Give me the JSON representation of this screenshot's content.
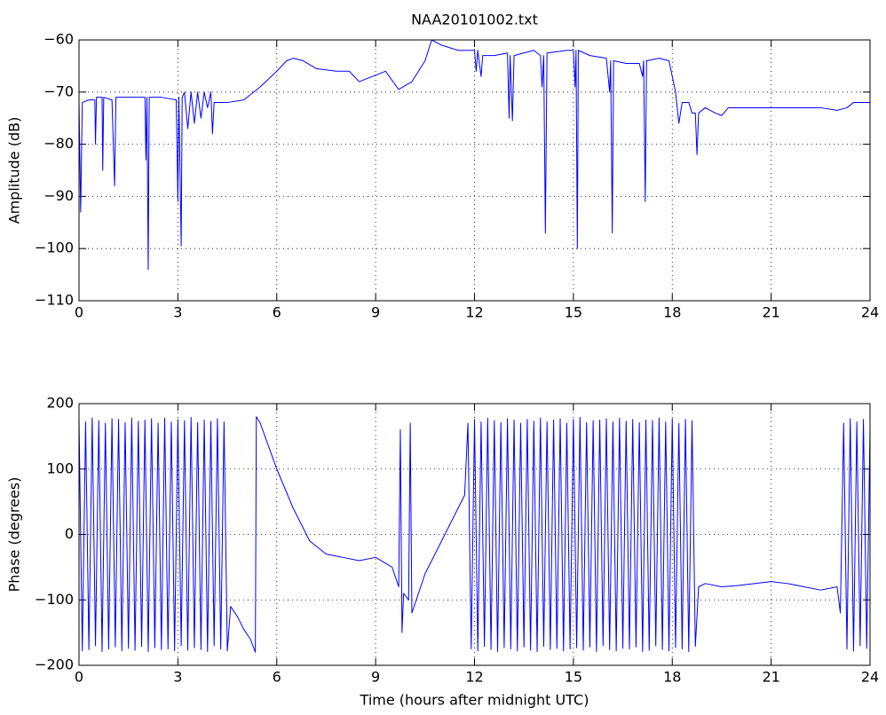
{
  "chart_data": [
    {
      "type": "line",
      "title": "NAA20101002.txt",
      "ylabel": "Amplitude (dB)",
      "color": "#0000ff",
      "grid": true,
      "xlim": [
        0,
        24
      ],
      "xticks": [
        0,
        3,
        6,
        9,
        12,
        15,
        18,
        21,
        24
      ],
      "ylim": [
        -110,
        -60
      ],
      "yticks": [
        {
          "value": -110,
          "label": "−110"
        },
        {
          "value": -100,
          "label": "−100"
        },
        {
          "value": -90,
          "label": "−90"
        },
        {
          "value": -80,
          "label": "−80"
        },
        {
          "value": -70,
          "label": "−70"
        },
        {
          "value": -60,
          "label": "−60"
        }
      ],
      "x": [
        0,
        0.05,
        0.1,
        0.3,
        0.48,
        0.5,
        0.53,
        0.7,
        0.72,
        0.75,
        1.0,
        1.08,
        1.12,
        1.5,
        2.0,
        2.03,
        2.06,
        2.1,
        2.13,
        2.5,
        2.95,
        3.0,
        3.03,
        3.1,
        3.13,
        3.2,
        3.3,
        3.4,
        3.5,
        3.6,
        3.7,
        3.8,
        3.9,
        4.0,
        4.05,
        4.1,
        4.5,
        5.0,
        5.5,
        6.0,
        6.3,
        6.5,
        6.8,
        7.2,
        7.8,
        8.2,
        8.5,
        8.9,
        9.3,
        9.7,
        10.1,
        10.5,
        10.7,
        11.0,
        11.5,
        12.0,
        12.05,
        12.1,
        12.2,
        12.25,
        12.6,
        13.0,
        13.05,
        13.08,
        13.15,
        13.2,
        13.8,
        14.0,
        14.05,
        14.1,
        14.15,
        14.2,
        14.8,
        15.0,
        15.05,
        15.08,
        15.12,
        15.15,
        15.5,
        16.0,
        16.1,
        16.13,
        16.18,
        16.22,
        16.6,
        17.0,
        17.1,
        17.13,
        17.18,
        17.22,
        17.6,
        17.9,
        18.0,
        18.1,
        18.2,
        18.3,
        18.5,
        18.6,
        18.7,
        18.75,
        18.8,
        19.0,
        19.3,
        19.5,
        19.7,
        20,
        21,
        22,
        22.5,
        23,
        23.3,
        23.5,
        24
      ],
      "values": [
        -72,
        -93,
        -72,
        -71.5,
        -71.5,
        -80,
        -71,
        -71,
        -85,
        -71,
        -71.5,
        -88,
        -71,
        -71,
        -71,
        -83,
        -71,
        -104,
        -71,
        -71,
        -71.5,
        -91,
        -71,
        -99.5,
        -71,
        -70,
        -77,
        -70,
        -76,
        -70,
        -75,
        -70,
        -73,
        -70,
        -78,
        -72,
        -72,
        -71.5,
        -69,
        -66,
        -64,
        -63.5,
        -64,
        -65.5,
        -66,
        -66,
        -68,
        -67,
        -66,
        -69.5,
        -68,
        -64,
        -60,
        -61,
        -62,
        -62,
        -66,
        -62,
        -67,
        -63,
        -63,
        -62.5,
        -75,
        -63,
        -75.5,
        -63,
        -62,
        -63,
        -69,
        -63,
        -97,
        -62.5,
        -62,
        -62,
        -69,
        -62,
        -100,
        -62,
        -63,
        -63.5,
        -70,
        -64,
        -97,
        -64,
        -64.5,
        -64.5,
        -67,
        -64,
        -91,
        -64,
        -63.5,
        -64,
        -67,
        -70,
        -76,
        -72,
        -72,
        -74,
        -74,
        -82,
        -74,
        -73,
        -74,
        -74.5,
        -73,
        -73,
        -73,
        -73,
        -73,
        -73.5,
        -73,
        -72,
        -72
      ]
    },
    {
      "type": "line",
      "xlabel": "Time (hours after midnight UTC)",
      "ylabel": "Phase (degrees)",
      "color": "#0000ff",
      "grid": true,
      "xlim": [
        0,
        24
      ],
      "xticks": [
        0,
        3,
        6,
        9,
        12,
        15,
        18,
        21,
        24
      ],
      "ylim": [
        -200,
        200
      ],
      "yticks": [
        {
          "value": -200,
          "label": "−200"
        },
        {
          "value": -100,
          "label": "−100"
        },
        0,
        100,
        200
      ],
      "x": [
        0,
        0.1,
        0.2,
        0.3,
        0.4,
        0.5,
        0.6,
        0.7,
        0.8,
        0.9,
        1.0,
        1.1,
        1.2,
        1.3,
        1.4,
        1.5,
        1.6,
        1.7,
        1.8,
        1.9,
        2.0,
        2.1,
        2.2,
        2.3,
        2.4,
        2.5,
        2.6,
        2.7,
        2.8,
        2.9,
        3.0,
        3.1,
        3.2,
        3.3,
        3.4,
        3.5,
        3.6,
        3.7,
        3.8,
        3.9,
        4.0,
        4.1,
        4.2,
        4.3,
        4.4,
        4.5,
        4.6,
        4.8,
        5.0,
        5.2,
        5.35,
        5.38,
        5.5,
        6.0,
        6.5,
        7.0,
        7.5,
        8.0,
        8.5,
        9.0,
        9.5,
        9.7,
        9.75,
        9.8,
        9.85,
        10.0,
        10.05,
        10.1,
        10.5,
        11.0,
        11.5,
        11.7,
        11.8,
        11.9,
        12.0,
        12.1,
        12.2,
        12.3,
        12.4,
        12.5,
        12.6,
        12.7,
        12.8,
        12.9,
        13.0,
        13.1,
        13.2,
        13.3,
        13.4,
        13.5,
        13.6,
        13.7,
        13.8,
        13.9,
        14.0,
        14.1,
        14.2,
        14.3,
        14.4,
        14.5,
        14.6,
        14.7,
        14.8,
        14.9,
        15.0,
        15.1,
        15.2,
        15.3,
        15.4,
        15.5,
        15.6,
        15.7,
        15.8,
        15.9,
        16.0,
        16.1,
        16.2,
        16.3,
        16.4,
        16.5,
        16.6,
        16.7,
        16.8,
        16.9,
        17.0,
        17.1,
        17.2,
        17.3,
        17.4,
        17.5,
        17.6,
        17.7,
        17.8,
        17.9,
        18.0,
        18.1,
        18.2,
        18.3,
        18.4,
        18.5,
        18.6,
        18.7,
        18.8,
        19.0,
        19.5,
        20.0,
        21.0,
        21.5,
        22.0,
        22.5,
        23.0,
        23.1,
        23.2,
        23.3,
        23.4,
        23.5,
        23.6,
        23.7,
        23.8,
        23.9,
        24.0
      ],
      "values": [
        175,
        -178,
        172,
        -176,
        178,
        -170,
        174,
        -179,
        170,
        -175,
        177,
        -172,
        176,
        -178,
        171,
        -174,
        178,
        -177,
        173,
        -171,
        175,
        -179,
        177,
        -173,
        170,
        -176,
        178,
        -175,
        172,
        -178,
        176,
        -170,
        174,
        -177,
        179,
        -173,
        171,
        -176,
        175,
        -179,
        173,
        -170,
        177,
        -175,
        172,
        -178,
        -110,
        -125,
        -145,
        -160,
        -180,
        180,
        170,
        100,
        40,
        -10,
        -30,
        -35,
        -40,
        -35,
        -50,
        -80,
        160,
        -150,
        -90,
        -100,
        170,
        -120,
        -60,
        -10,
        40,
        60,
        170,
        -175,
        176,
        -178,
        172,
        -171,
        178,
        -176,
        174,
        -179,
        171,
        -173,
        177,
        -175,
        175,
        -178,
        170,
        -172,
        176,
        -177,
        173,
        -179,
        178,
        -171,
        172,
        -176,
        175,
        -174,
        177,
        -178,
        170,
        -175,
        176,
        -173,
        179,
        -177,
        171,
        -172,
        174,
        -179,
        175,
        -170,
        177,
        -176,
        172,
        -178,
        178,
        -174,
        173,
        -175,
        176,
        -172,
        171,
        -179,
        175,
        -177,
        174,
        -170,
        178,
        -176,
        172,
        -178,
        177,
        -173,
        170,
        -175,
        176,
        -179,
        174,
        -171,
        -80,
        -75,
        -80,
        -78,
        -72,
        -75,
        -80,
        -85,
        -80,
        -120,
        170,
        -175,
        177,
        -178,
        172,
        -170,
        176,
        -174,
        160
      ]
    }
  ]
}
